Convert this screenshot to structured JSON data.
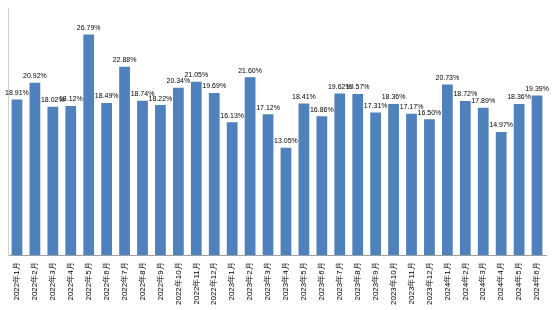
{
  "chart_data": {
    "type": "bar",
    "categories": [
      "2022年1月",
      "2022年2月",
      "2022年3月",
      "2022年4月",
      "2022年5月",
      "2022年6月",
      "2022年7月",
      "2022年8月",
      "2022年9月",
      "2022年10月",
      "2022年11月",
      "2022年12月",
      "2023年1月",
      "2023年2月",
      "2023年3月",
      "2023年4月",
      "2023年5月",
      "2023年6月",
      "2023年7月",
      "2023年8月",
      "2023年9月",
      "2023年10月",
      "2023年11月",
      "2023年12月",
      "2024年1月",
      "2024年2月",
      "2024年3月",
      "2024年4月",
      "2024年5月",
      "2024年6月"
    ],
    "values": [
      18.91,
      20.92,
      18.02,
      18.12,
      26.79,
      18.49,
      22.88,
      18.74,
      18.22,
      20.34,
      21.05,
      19.69,
      16.13,
      21.6,
      17.12,
      13.05,
      18.41,
      16.86,
      19.62,
      19.57,
      17.31,
      18.36,
      17.17,
      16.5,
      20.73,
      18.72,
      17.89,
      14.97,
      18.36,
      19.39
    ],
    "value_labels": [
      "18.91%",
      "20.92%",
      "18.02%",
      "18.12%",
      "26.79%",
      "18.49%",
      "22.88%",
      "18.74%",
      "18.22%",
      "20.34%",
      "21.05%",
      "19.69%",
      "16.13%",
      "21.60%",
      "17.12%",
      "13.05%",
      "18.41%",
      "16.86%",
      "19.62%",
      "19.57%",
      "17.31%",
      "18.36%",
      "17.17%",
      "16.50%",
      "20.73%",
      "18.72%",
      "17.89%",
      "14.97%",
      "18.36%",
      "19.39%"
    ],
    "color": "#4f81bd",
    "ylim": [
      0,
      30
    ],
    "grid": false,
    "data_labels": true,
    "tick_labels": "x"
  }
}
